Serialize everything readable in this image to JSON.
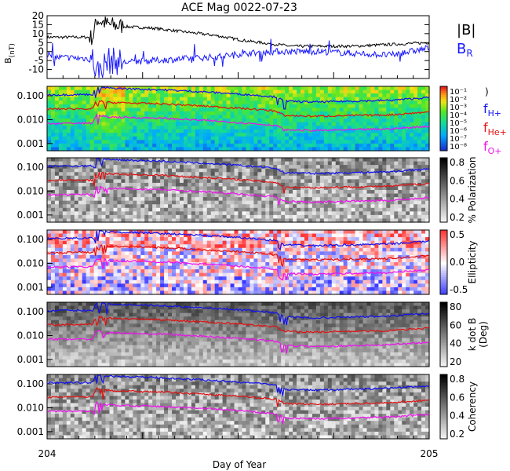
{
  "title": "ACE Mag 0022-07-23",
  "xaxis": {
    "label": "Day of Year",
    "start_label": "204",
    "end_label": "205",
    "range": [
      204,
      205
    ]
  },
  "colors": {
    "B_total": "#000000",
    "B_R": "#1a1aff",
    "f_H": "#1010ee",
    "f_He": "#e01010",
    "f_O": "#ee10ee"
  },
  "chart_data": [
    {
      "type": "line",
      "panel": "magnetic-field",
      "ylabel": "B (nT)",
      "ylim": [
        -15,
        20
      ],
      "yticks": [
        "20",
        "15",
        "10",
        "5",
        "0",
        "-5",
        "-10"
      ],
      "legend": [
        {
          "name": "|B|",
          "color": "#000000"
        },
        {
          "name": "B_R",
          "color": "#1a1aff"
        }
      ],
      "series": [
        {
          "name": "|B|",
          "x": [
            204.0,
            204.12,
            204.13,
            204.16,
            204.2,
            204.28,
            204.36,
            204.44,
            204.52,
            204.6,
            204.64,
            204.72,
            204.8,
            204.9,
            205.0
          ],
          "values": [
            8,
            8,
            18,
            15,
            14,
            13,
            11,
            9,
            6,
            4,
            3,
            3,
            3,
            4,
            5
          ]
        },
        {
          "name": "B_R",
          "x": [
            204.0,
            204.12,
            204.13,
            204.16,
            204.2,
            204.28,
            204.36,
            204.44,
            204.52,
            204.6,
            204.64,
            204.72,
            204.8,
            204.9,
            205.0
          ],
          "values": [
            -3,
            -4,
            -12,
            -5,
            -6,
            -5,
            -4,
            -3,
            -1,
            0,
            0,
            0,
            -1,
            -2,
            2
          ]
        }
      ]
    },
    {
      "type": "heatmap",
      "panel": "wave-power",
      "ylim": [
        0.0005,
        0.25
      ],
      "yscale": "log",
      "yticks": [
        "0.100",
        "0.010",
        "0.001"
      ],
      "colorbar": {
        "ticks": [
          "10⁻¹",
          "10⁻²",
          "10⁻³",
          "10⁻⁴",
          "10⁻⁵",
          "10⁻⁶",
          "10⁻⁷",
          "10⁻⁸"
        ],
        "label": ""
      },
      "legend": [
        {
          "name": "f_H+",
          "color": "#1010ee"
        },
        {
          "name": "f_He+",
          "color": "#e01010"
        },
        {
          "name": "f_O+",
          "color": "#ee10ee"
        }
      ]
    },
    {
      "type": "heatmap",
      "panel": "polarization",
      "yscale": "log",
      "yticks": [
        "0.100",
        "0.010",
        "0.001"
      ],
      "colorbar": {
        "ticks": [
          "0.8",
          "0.6",
          "0.4",
          "0.2"
        ],
        "label": "% Polarization"
      }
    },
    {
      "type": "heatmap",
      "panel": "ellipticity",
      "yscale": "log",
      "yticks": [
        "0.100",
        "0.010",
        "0.001"
      ],
      "colorbar": {
        "ticks": [
          "0.5",
          "0.0",
          "-0.5"
        ],
        "label": "Ellipticity"
      }
    },
    {
      "type": "heatmap",
      "panel": "k-dot-b",
      "yscale": "log",
      "yticks": [
        "0.100",
        "0.010",
        "0.001"
      ],
      "colorbar": {
        "ticks": [
          "80",
          "60",
          "40",
          "20"
        ],
        "label": "k dot B",
        "label2": "(Deg)"
      }
    },
    {
      "type": "heatmap",
      "panel": "coherency",
      "yscale": "log",
      "yticks": [
        "0.100",
        "0.010",
        "0.001"
      ],
      "colorbar": {
        "ticks": [
          "0.8",
          "0.6",
          "0.4",
          "0.2"
        ],
        "label": "Coherency"
      }
    },
    {
      "type": "line",
      "panel": "gyrofrequency-overlay",
      "description_of_use": "",
      "x": [
        204.0,
        204.12,
        204.13,
        204.16,
        204.3,
        204.4,
        204.6,
        204.62,
        204.7,
        204.8,
        204.9,
        205.0
      ],
      "series": [
        {
          "name": "f_H+",
          "values": [
            0.11,
            0.115,
            0.25,
            0.21,
            0.18,
            0.15,
            0.09,
            0.06,
            0.055,
            0.06,
            0.065,
            0.085
          ]
        },
        {
          "name": "f_He+",
          "values": [
            0.028,
            0.029,
            0.063,
            0.053,
            0.046,
            0.038,
            0.023,
            0.015,
            0.014,
            0.015,
            0.016,
            0.021
          ]
        },
        {
          "name": "f_O+",
          "values": [
            0.007,
            0.0072,
            0.016,
            0.013,
            0.0115,
            0.0095,
            0.0057,
            0.0038,
            0.0035,
            0.0038,
            0.0041,
            0.0053
          ]
        }
      ]
    }
  ]
}
